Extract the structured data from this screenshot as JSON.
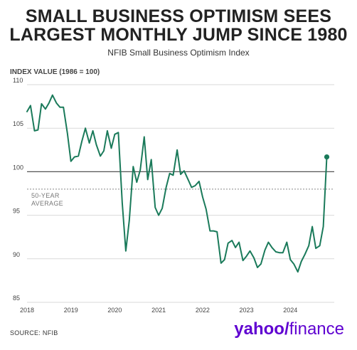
{
  "header": {
    "title_line1": "SMALL BUSINESS OPTIMISM SEES",
    "title_line2": "LARGEST MONTHLY JUMP SINCE 1980",
    "subtitle": "NFIB Small Business Optimism Index"
  },
  "footer": {
    "source": "SOURCE: NFIB",
    "brand_yahoo": "yahoo/",
    "brand_finance": "finance"
  },
  "colors": {
    "line": "#1a7a5a",
    "reference": "#555555",
    "average": "#888888",
    "grid": "#d9d9d9",
    "brand": "#5f01d1"
  },
  "chart_data": {
    "type": "line",
    "title": "SMALL BUSINESS OPTIMISM SEES LARGEST MONTHLY JUMP SINCE 1980",
    "subtitle": "NFIB Small Business Optimism Index",
    "ylabel": "INDEX VALUE (1986 = 100)",
    "xlabel": "",
    "ylim": [
      85,
      110
    ],
    "yticks": [
      85,
      90,
      95,
      100,
      105,
      110
    ],
    "xlim": [
      2018.0,
      2025.0
    ],
    "xticks": [
      2018,
      2019,
      2020,
      2021,
      2022,
      2023,
      2024
    ],
    "grid": true,
    "reference_line": 100,
    "annotations": [
      {
        "text_lines": [
          "50-YEAR",
          "AVERAGE"
        ],
        "y": 98
      }
    ],
    "series": [
      {
        "x": [
          2018.0,
          2018.08,
          2018.17,
          2018.25,
          2018.33,
          2018.42,
          2018.5,
          2018.58,
          2018.67,
          2018.75,
          2018.83,
          2018.92,
          2019.0,
          2019.08,
          2019.17,
          2019.25,
          2019.33,
          2019.42,
          2019.5,
          2019.58,
          2019.67,
          2019.75,
          2019.83,
          2019.92,
          2020.0,
          2020.08,
          2020.17,
          2020.25,
          2020.33,
          2020.42,
          2020.5,
          2020.58,
          2020.67,
          2020.75,
          2020.83,
          2020.92,
          2021.0,
          2021.08,
          2021.17,
          2021.25,
          2021.33,
          2021.42,
          2021.5,
          2021.58,
          2021.67,
          2021.75,
          2021.83,
          2021.92,
          2022.0,
          2022.08,
          2022.17,
          2022.25,
          2022.33,
          2022.42,
          2022.5,
          2022.58,
          2022.67,
          2022.75,
          2022.83,
          2022.92,
          2023.0,
          2023.08,
          2023.17,
          2023.25,
          2023.33,
          2023.42,
          2023.5,
          2023.58,
          2023.67,
          2023.75,
          2023.83,
          2023.92,
          2024.0,
          2024.08,
          2024.17,
          2024.25,
          2024.33,
          2024.42,
          2024.5,
          2024.58,
          2024.67,
          2024.75,
          2024.83
        ],
        "values": [
          106.9,
          107.6,
          104.7,
          104.8,
          107.8,
          107.2,
          107.9,
          108.8,
          107.9,
          107.4,
          107.4,
          104.4,
          101.2,
          101.7,
          101.8,
          103.5,
          105.0,
          103.3,
          104.7,
          103.1,
          101.8,
          102.4,
          104.7,
          102.7,
          104.3,
          104.5,
          96.4,
          90.9,
          94.4,
          100.6,
          98.8,
          100.2,
          104.0,
          99.1,
          101.4,
          95.9,
          95.0,
          95.8,
          98.2,
          99.8,
          99.6,
          102.5,
          99.7,
          100.1,
          99.1,
          98.2,
          98.4,
          98.9,
          97.1,
          95.7,
          93.2,
          93.2,
          93.1,
          89.5,
          89.9,
          91.8,
          92.1,
          91.3,
          91.9,
          89.8,
          90.3,
          90.9,
          90.1,
          89.0,
          89.4,
          91.0,
          91.9,
          91.3,
          90.8,
          90.7,
          90.7,
          91.9,
          89.9,
          89.4,
          88.5,
          89.7,
          90.5,
          91.5,
          93.7,
          91.2,
          91.5,
          93.7,
          101.7
        ]
      }
    ]
  }
}
